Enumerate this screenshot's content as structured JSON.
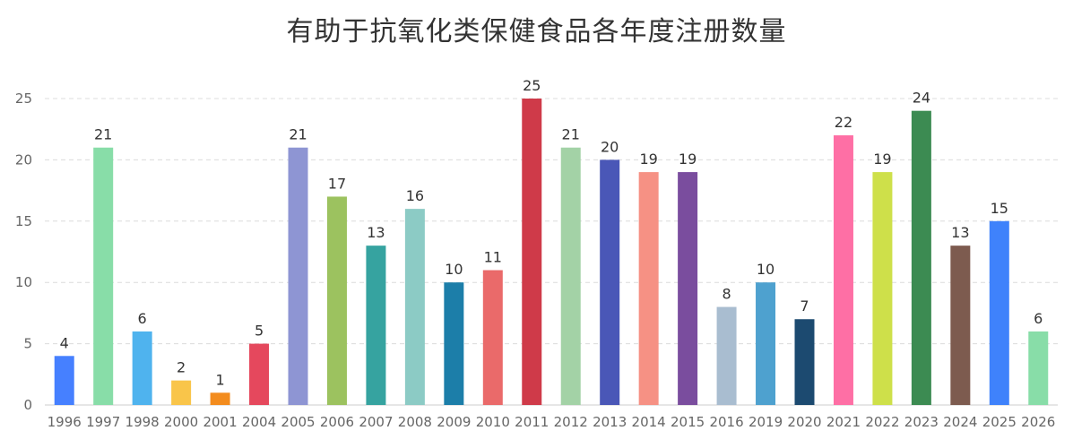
{
  "chart_data": {
    "type": "bar",
    "title": "有助于抗氧化类保健食品各年度注册数量",
    "xlabel": "",
    "ylabel": "",
    "ylim": [
      0,
      25
    ],
    "yticks": [
      0,
      5,
      10,
      15,
      20,
      25
    ],
    "grid": "horizontal dashed",
    "legend": "none",
    "categories": [
      "1996",
      "1997",
      "1998",
      "2000",
      "2001",
      "2004",
      "2005",
      "2006",
      "2007",
      "2008",
      "2009",
      "2010",
      "2011",
      "2012",
      "2013",
      "2014",
      "2015",
      "2016",
      "2019",
      "2020",
      "2021",
      "2022",
      "2023",
      "2024",
      "2025",
      "2026"
    ],
    "values": [
      4,
      21,
      6,
      2,
      1,
      5,
      21,
      17,
      13,
      16,
      10,
      11,
      25,
      21,
      20,
      19,
      19,
      8,
      10,
      7,
      22,
      19,
      24,
      13,
      15,
      6
    ],
    "colors": [
      "#4680ff",
      "#88dda8",
      "#4fb3ee",
      "#f9c54a",
      "#f38c1e",
      "#e5485d",
      "#8e95d3",
      "#9cc25f",
      "#36a3a0",
      "#8ccbc5",
      "#1c7ea9",
      "#ea6a6a",
      "#cf3a49",
      "#a3d2a6",
      "#4a57b7",
      "#f69184",
      "#7a4d9e",
      "#a9bdd0",
      "#4ea1cf",
      "#1c4a70",
      "#fe6fa5",
      "#cee04a",
      "#3c8b52",
      "#7d5b4f",
      "#3f82fb",
      "#88dda8"
    ]
  }
}
